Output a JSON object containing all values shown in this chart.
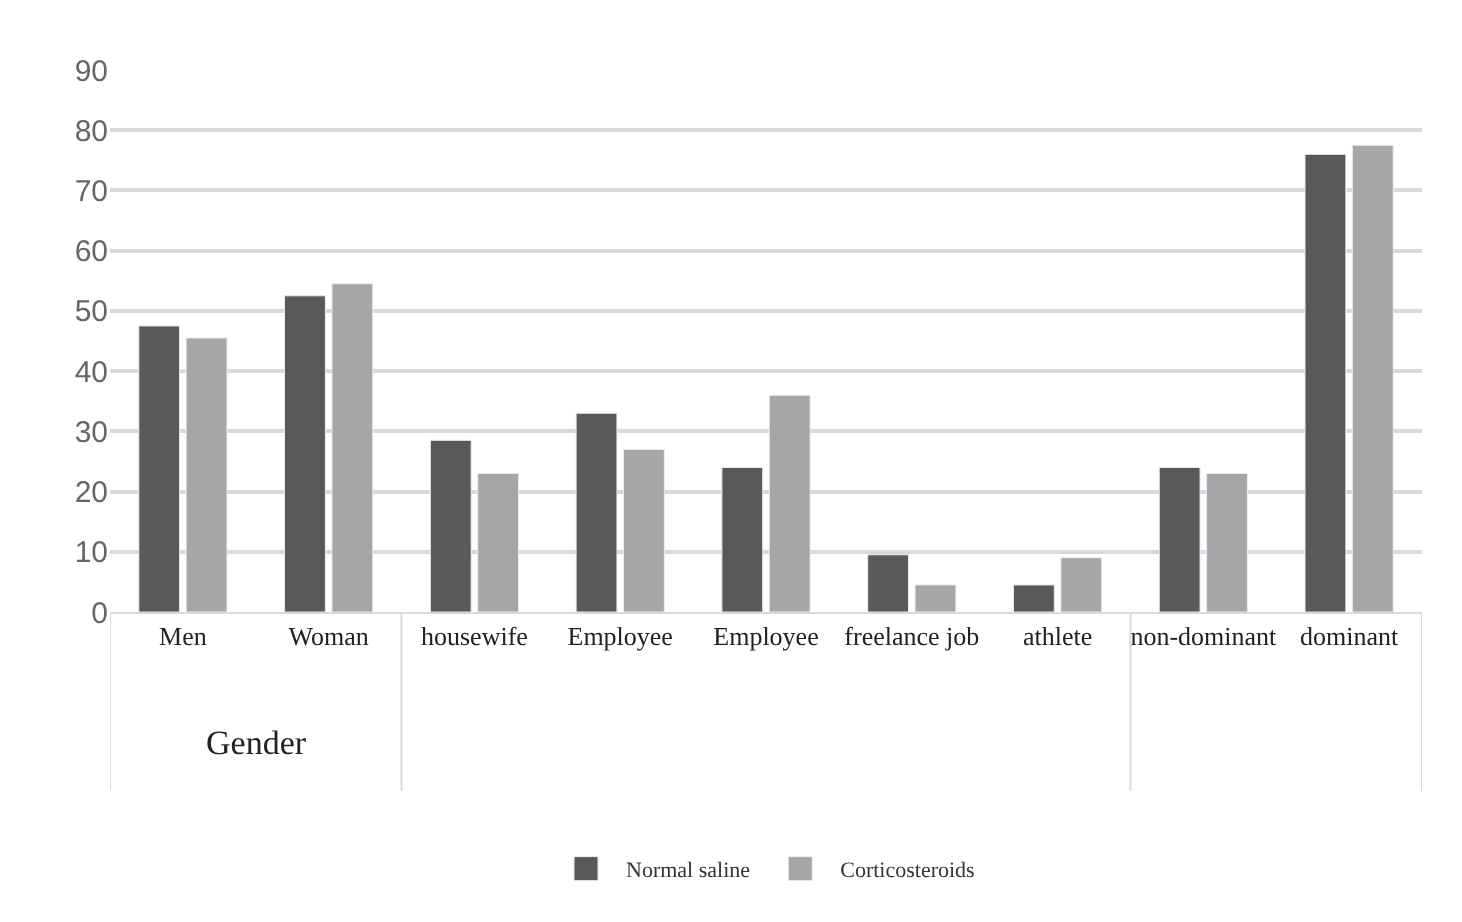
{
  "chart_data": {
    "type": "bar",
    "categories": [
      "Men",
      "Woman",
      "housewife",
      "Employee",
      "Employee",
      "freelance job",
      "athlete",
      "non-dominant",
      "dominant"
    ],
    "series": [
      {
        "name": "Normal saline",
        "color": "#595959",
        "values": [
          47.5,
          52.5,
          28.5,
          33,
          24,
          9.5,
          4.5,
          24,
          76
        ]
      },
      {
        "name": "Corticosteroids",
        "color": "#a6a6a6",
        "values": [
          45.5,
          54.5,
          23,
          27,
          36,
          4.5,
          9,
          23,
          77.5
        ]
      }
    ],
    "annotations": [
      "Gender"
    ],
    "ylim": [
      0,
      90
    ],
    "yticks": [
      0,
      10,
      20,
      30,
      40,
      50,
      60,
      70,
      80,
      90
    ],
    "grid": "y",
    "legend": "bottom"
  }
}
